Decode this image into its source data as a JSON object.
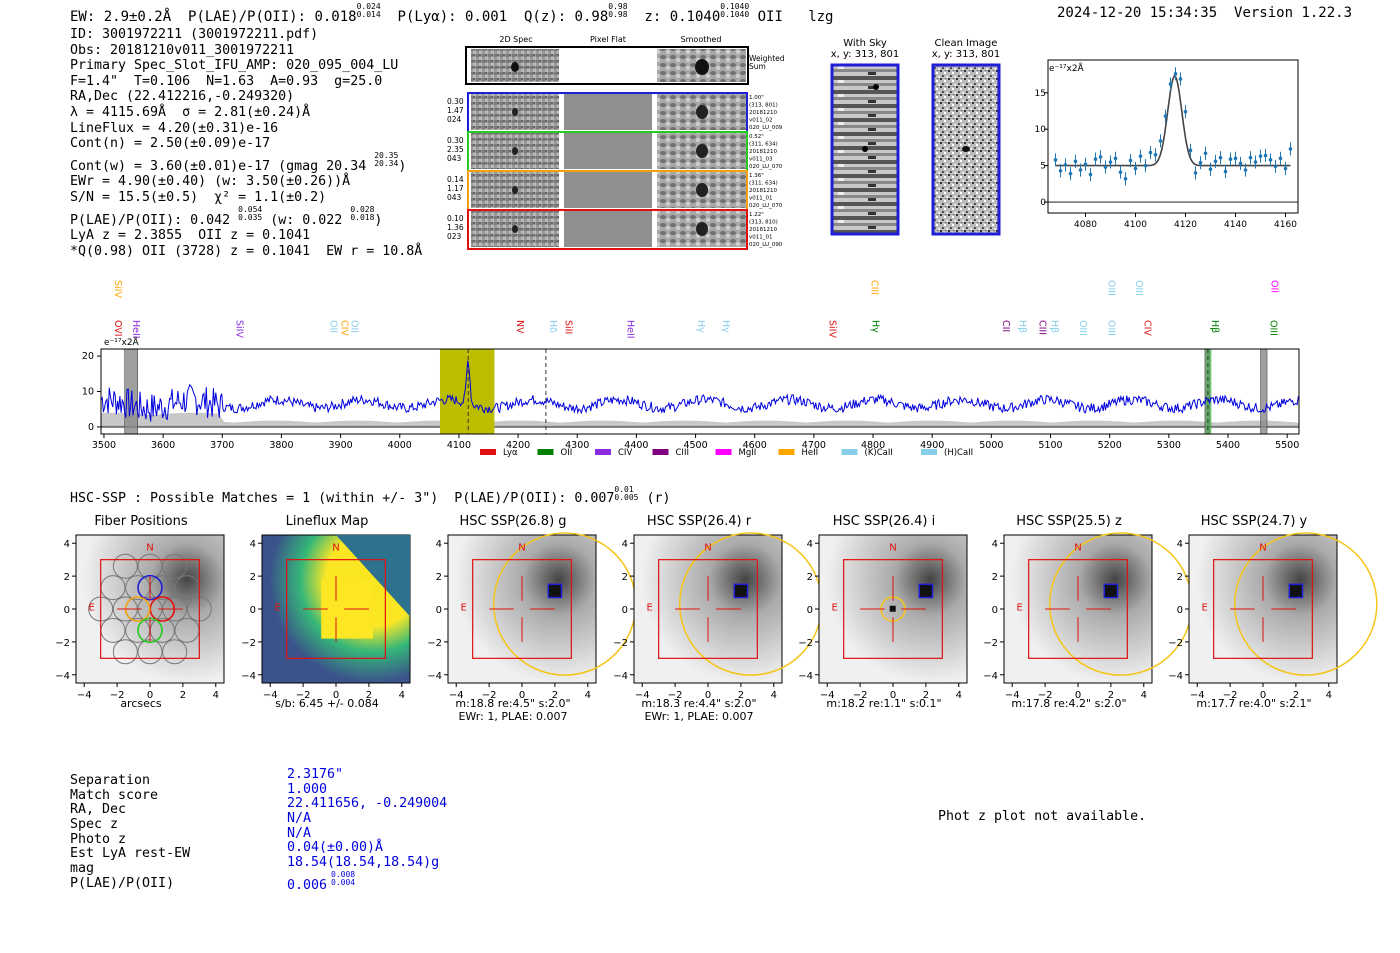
{
  "header": {
    "ew": "EW: 2.9±0.2Å",
    "plae_label": "P(LAE)/P(OII): 0.018",
    "plae_hi": "0.024",
    "plae_lo": "0.014",
    "plya": "P(Lyα): 0.001",
    "qz_label": "Q(z): 0.98",
    "qz_hi": "0.98",
    "qz_lo": "0.98",
    "z_label": "z: 0.1040",
    "z_hi": "0.1040",
    "z_lo": "0.1040",
    "z_line": "OII",
    "flag": "lzg",
    "timestamp": "2024-12-20 15:34:35",
    "version": "Version 1.22.3"
  },
  "info": {
    "id": "ID: 3001972211 (3001972211.pdf)",
    "obs": "Obs: 20181210v011_3001972211",
    "slot": "Primary Spec_Slot_IFU_AMP: 020_095_004_LU",
    "fit": "F=1.4\"  T=0.106  N=1.63  A=0.93  g=25.0",
    "radec": "RA,Dec (22.412216,-0.249320)",
    "lambda": "λ = 4115.69Å  σ = 2.81(±0.24)Å",
    "lineflux": "LineFlux = 4.20(±0.31)e-16",
    "contn": "Cont(n) = 2.50(±0.09)e-17",
    "contw": "Cont(w) = 3.60(±0.01)e-17 (gmag 20.34",
    "contw_hi": "20.35",
    "contw_lo": "20.34",
    "ewr": "EWr = 4.90(±0.40) (w: 3.50(±0.26))Å",
    "sn": "S/N = 15.5(±0.5)  χ² = 1.1(±0.2)",
    "plae": "P(LAE)/P(OII): 0.042",
    "plae_hi": "0.054",
    "plae_lo": "0.035",
    "plae_w": "(w: 0.022",
    "plae_w_hi": "0.028",
    "plae_w_lo": "0.018",
    "lya_z": "LyA z = 2.3855  OII z = 0.1041",
    "q": "*Q(0.98) OII (3728) z = 0.1041  EW r = 10.8Å"
  },
  "stamps": {
    "col_2d": "2D Spec",
    "col_flat": "Pixel Flat",
    "col_smooth": "Smoothed",
    "weighted": "Weighted\nSum",
    "rows": [
      {
        "left": "0.30\n1.47\n024",
        "right": "1.00\"\n(313, 801)\n20181210\nv011_02\n020_LU_009",
        "color": "#1e1ed6"
      },
      {
        "left": "0.30\n2.35\n043",
        "right": "0.52\"\n(311, 634)\n20181210\nv011_03\n020_LU_070",
        "color": "#22cc22"
      },
      {
        "left": "0.14\n1.17\n043",
        "right": "1.36\"\n(311, 634)\n20181210\nv011_01\n020_LU_070",
        "color": "#f2a010"
      },
      {
        "left": "0.10\n1.36\n023",
        "right": "1.22\"\n(313, 810)\n20181210\nv011_01\n020_LU_090",
        "color": "#e01010"
      }
    ]
  },
  "sky": {
    "with_sky_title": "With Sky",
    "with_sky_coords": "x, y: 313, 801",
    "clean_title": "Clean Image",
    "clean_coords": "x, y: 313, 801"
  },
  "hsc": {
    "title_pre": "HSC-SSP : Possible Matches = 1 (within +/- 3\")  P(LAE)/P(OII): 0.007",
    "title_hi": "0.01",
    "title_lo": "0.005",
    "title_post": "(r)",
    "cutouts": [
      {
        "title": "Fiber Positions",
        "cap1": "arcsecs",
        "cap2": ""
      },
      {
        "title": "Lineflux Map",
        "cap1": "s/b: 6.45 +/- 0.084",
        "cap2": ""
      },
      {
        "title": "HSC SSP(26.8) g",
        "cap1": "m:18.8  re:4.5\"  s:2.0\"",
        "cap2": "EWr: 1, PLAE: 0.007"
      },
      {
        "title": "HSC SSP(26.4) r",
        "cap1": "m:18.3  re:4.4\"  s:2.0\"",
        "cap2": "EWr: 1, PLAE: 0.007"
      },
      {
        "title": "HSC SSP(26.4) i",
        "cap1": "m:18.2  re:1.1\"  s:0.1\"",
        "cap2": ""
      },
      {
        "title": "HSC SSP(25.5) z",
        "cap1": "m:17.8  re:4.2\"  s:2.0\"",
        "cap2": ""
      },
      {
        "title": "HSC SSP(24.7) y",
        "cap1": "m:17.7  re:4.0\"  s:2.1\"",
        "cap2": ""
      }
    ],
    "marker_n": "N",
    "marker_e": "E",
    "axis_ticks": [
      "−4",
      "−2",
      "0",
      "2",
      "4"
    ]
  },
  "match": {
    "labels": [
      "Separation",
      "Match score",
      "RA, Dec",
      "Spec z",
      "Photo z",
      "Est LyA rest-EW",
      "mag",
      "P(LAE)/P(OII)"
    ],
    "values": [
      "2.3176\"",
      "1.000",
      "22.411656, -0.249004",
      "N/A",
      "N/A",
      "0.04(±0.00)Å",
      "18.54(18.54,18.54)g",
      "0.006"
    ],
    "plae_hi": "0.008",
    "plae_lo": "0.004",
    "phot_z": "Phot z plot not available."
  },
  "colors": {
    "spec_line": "#0000dd",
    "fit_band": "#bdbd00",
    "point": "#1f77b4",
    "fit": "#444444",
    "box_red": "#e01010",
    "box_blue": "#1e1ed6"
  },
  "chart_data": [
    {
      "type": "scatter",
      "name": "line-fit-zoom",
      "ylabel": "e⁻¹⁷x2Å",
      "xlim": [
        4065,
        4165
      ],
      "ylim": [
        -1.5,
        19.5
      ],
      "xticks": [
        4080,
        4100,
        4120,
        4140,
        4160
      ],
      "yticks": [
        0,
        5,
        10,
        15
      ],
      "x": [
        4068,
        4070,
        4072,
        4074,
        4076,
        4078,
        4080,
        4082,
        4084,
        4086,
        4088,
        4090,
        4092,
        4094,
        4096,
        4098,
        4100,
        4102,
        4104,
        4106,
        4108,
        4110,
        4112,
        4114,
        4116,
        4118,
        4120,
        4122,
        4124,
        4126,
        4128,
        4130,
        4132,
        4134,
        4136,
        4138,
        4140,
        4142,
        4144,
        4146,
        4148,
        4150,
        4152,
        4154,
        4156,
        4158,
        4160,
        4162
      ],
      "y": [
        5.8,
        4.3,
        5.1,
        3.9,
        5.6,
        4.4,
        5.2,
        3.8,
        5.9,
        6.2,
        4.8,
        5.5,
        6.0,
        4.1,
        3.2,
        5.7,
        4.6,
        6.3,
        5.0,
        6.8,
        6.5,
        8.4,
        11.8,
        16.2,
        17.6,
        16.9,
        12.4,
        7.1,
        4.0,
        5.4,
        6.7,
        4.5,
        5.6,
        6.1,
        4.2,
        5.9,
        6.0,
        5.3,
        4.4,
        6.1,
        5.5,
        6.3,
        6.4,
        5.8,
        4.9,
        6.0,
        4.6,
        7.3
      ],
      "fit": {
        "continuum": 5.0,
        "amplitude": 12.3,
        "center": 4115.69,
        "sigma": 2.81
      }
    },
    {
      "type": "line",
      "name": "full-spectrum",
      "ylabel": "e⁻¹⁷x2Å",
      "xlim": [
        3495,
        5520
      ],
      "ylim": [
        -2,
        22
      ],
      "xticks": [
        3500,
        3600,
        3700,
        3800,
        3900,
        4000,
        4100,
        4200,
        4300,
        4400,
        4500,
        4600,
        4700,
        4800,
        4900,
        5000,
        5100,
        5200,
        5300,
        5400,
        5500
      ],
      "yticks": [
        0,
        10,
        20
      ],
      "baseline": 6.5,
      "emission_line": {
        "center": 4115.69,
        "amplitude": 12.3,
        "sigma": 2.81
      },
      "fit_band": [
        4068,
        4160
      ],
      "grey_bands": [
        [
          3535,
          3557
        ],
        [
          5361,
          5369
        ],
        [
          5455,
          5466
        ]
      ],
      "green_band": [
        5362,
        5372
      ],
      "dashed_lines": [
        4115.69,
        4247,
        5366
      ],
      "legend": [
        {
          "label": "Lyα",
          "color": "#e01010"
        },
        {
          "label": "OII",
          "color": "#008000"
        },
        {
          "label": "CIV",
          "color": "#8a2be2"
        },
        {
          "label": "CIII",
          "color": "#800080"
        },
        {
          "label": "MgII",
          "color": "#ff00ff"
        },
        {
          "label": "HeII",
          "color": "#ffa500"
        },
        {
          "label": "(K)CaII",
          "color": "#87ceeb"
        },
        {
          "label": "(H)CaII",
          "color": "#87ceeb"
        }
      ],
      "line_labels": [
        {
          "label": "OVI",
          "wave": 3512,
          "row": 2,
          "color": "#e01010"
        },
        {
          "label": "SiIV",
          "wave": 3512,
          "row": 0,
          "color": "#ffa500"
        },
        {
          "label": "HeII",
          "wave": 3542,
          "row": 2,
          "color": "#8a2be2"
        },
        {
          "label": "SiIV",
          "wave": 3717,
          "row": 2,
          "color": "#8a2be2"
        },
        {
          "label": "OII",
          "wave": 3876,
          "row": 2,
          "color": "#87ceeb"
        },
        {
          "label": "CIV",
          "wave": 3895,
          "row": 2,
          "color": "#ffa500"
        },
        {
          "label": "OII",
          "wave": 3912,
          "row": 2,
          "color": "#87ceeb"
        },
        {
          "label": "NV",
          "wave": 4191,
          "row": 2,
          "color": "#e01010"
        },
        {
          "label": "Hδ",
          "wave": 4247,
          "row": 2,
          "color": "#87ceeb"
        },
        {
          "label": "SiII",
          "wave": 4273,
          "row": 2,
          "color": "#e01010"
        },
        {
          "label": "HeII",
          "wave": 4378,
          "row": 2,
          "color": "#8a2be2"
        },
        {
          "label": "Hγ",
          "wave": 4497,
          "row": 2,
          "color": "#87ceeb"
        },
        {
          "label": "Hγ",
          "wave": 4540,
          "row": 2,
          "color": "#87ceeb"
        },
        {
          "label": "SiIV",
          "wave": 4720,
          "row": 2,
          "color": "#e01010"
        },
        {
          "label": "CIII",
          "wave": 4791,
          "row": 0,
          "color": "#ffa500"
        },
        {
          "label": "Hγ",
          "wave": 4792,
          "row": 2,
          "color": "#008000"
        },
        {
          "label": "CII",
          "wave": 5013,
          "row": 2,
          "color": "#800080"
        },
        {
          "label": "Hβ",
          "wave": 5041,
          "row": 2,
          "color": "#87ceeb"
        },
        {
          "label": "CIII",
          "wave": 5075,
          "row": 2,
          "color": "#800080"
        },
        {
          "label": "Hβ",
          "wave": 5095,
          "row": 2,
          "color": "#87ceeb"
        },
        {
          "label": "OIII",
          "wave": 5143,
          "row": 2,
          "color": "#87ceeb"
        },
        {
          "label": "OIII",
          "wave": 5191,
          "row": 2,
          "color": "#87ceeb"
        },
        {
          "label": "OIII",
          "wave": 5191,
          "row": 0,
          "color": "#87ceeb"
        },
        {
          "label": "OIII",
          "wave": 5238,
          "row": 0,
          "color": "#87ceeb"
        },
        {
          "label": "CIV",
          "wave": 5252,
          "row": 2,
          "color": "#e01010"
        },
        {
          "label": "Hβ",
          "wave": 5366,
          "row": 2,
          "color": "#008000"
        },
        {
          "label": "OIII",
          "wave": 5465,
          "row": 2,
          "color": "#008000"
        },
        {
          "label": "OII",
          "wave": 5467,
          "row": 0,
          "color": "#ff00ff"
        }
      ]
    }
  ]
}
